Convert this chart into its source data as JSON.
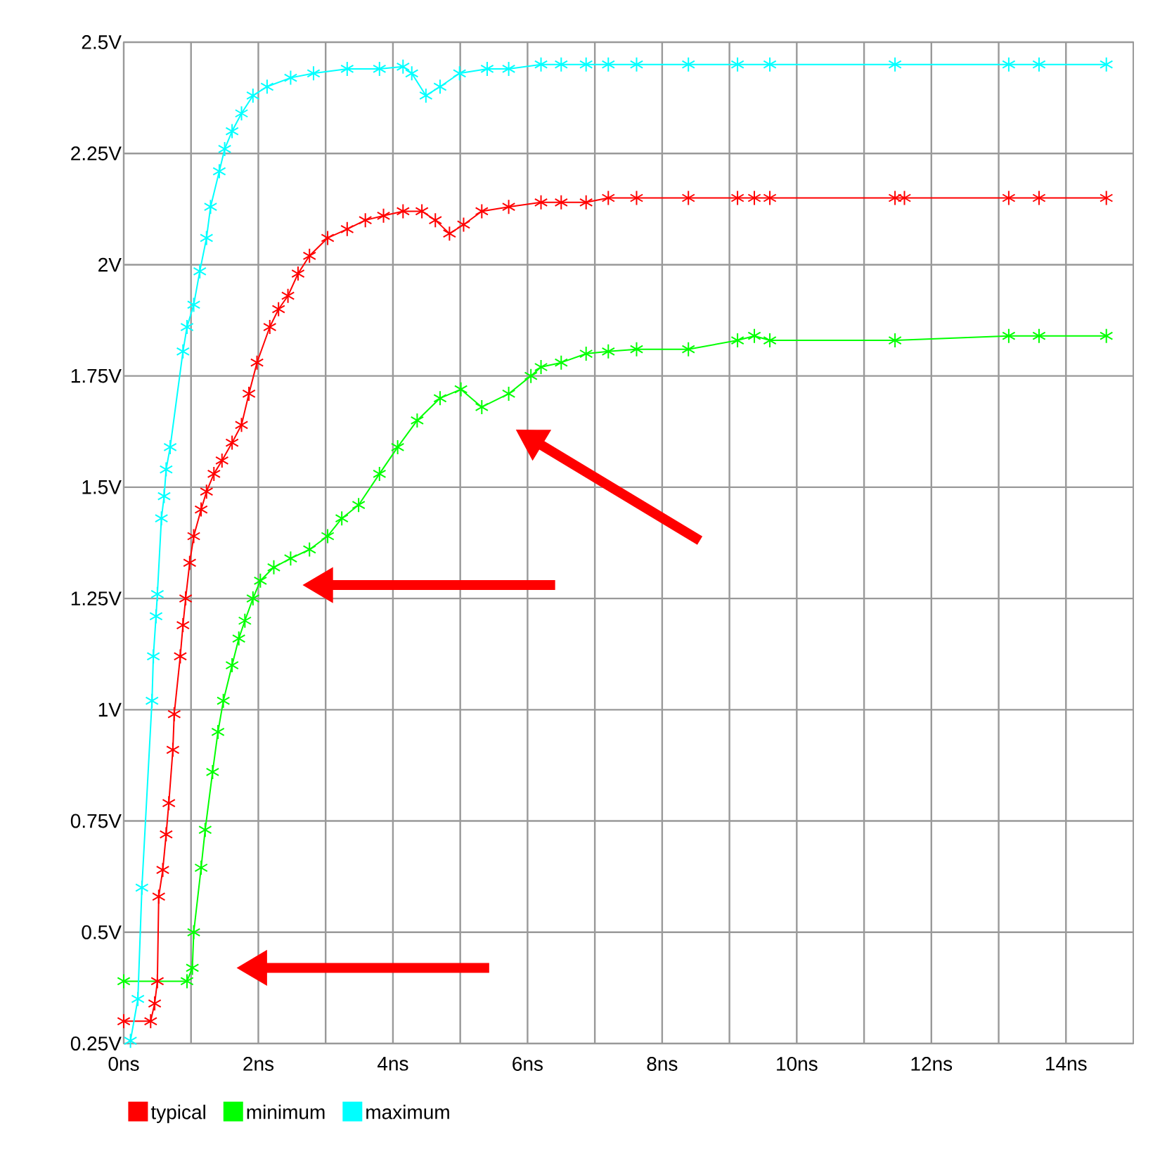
{
  "chart_data": {
    "type": "line",
    "marker": "cross",
    "grid": true,
    "legend": "bottom left",
    "xlim": [
      0,
      15
    ],
    "ylim": [
      0.25,
      2.5
    ],
    "xticks": [
      {
        "value": 0,
        "label": "0ns"
      },
      {
        "value": 1,
        "label": null
      },
      {
        "value": 2,
        "label": "2ns"
      },
      {
        "value": 3,
        "label": null
      },
      {
        "value": 4,
        "label": "4ns"
      },
      {
        "value": 5,
        "label": null
      },
      {
        "value": 6,
        "label": "6ns"
      },
      {
        "value": 7,
        "label": null
      },
      {
        "value": 8,
        "label": "8ns"
      },
      {
        "value": 9,
        "label": null
      },
      {
        "value": 10,
        "label": "10ns"
      },
      {
        "value": 11,
        "label": null
      },
      {
        "value": 12,
        "label": "12ns"
      },
      {
        "value": 13,
        "label": null
      },
      {
        "value": 14,
        "label": "14ns"
      }
    ],
    "yticks": [
      {
        "value": 0.25,
        "label": "0.25V"
      },
      {
        "value": 0.5,
        "label": "0.5V"
      },
      {
        "value": 0.75,
        "label": "0.75V"
      },
      {
        "value": 1,
        "label": "1V"
      },
      {
        "value": 1.25,
        "label": "1.25V"
      },
      {
        "value": 1.5,
        "label": "1.5V"
      },
      {
        "value": 1.75,
        "label": "1.75V"
      },
      {
        "value": 2,
        "label": "2V"
      },
      {
        "value": 2.25,
        "label": "2.25V"
      },
      {
        "value": 2.5,
        "label": "2.5V"
      }
    ],
    "series": [
      {
        "name": "typical",
        "color": "#ff0000",
        "x": [
          0,
          0.4,
          0.46,
          0.5,
          0.52,
          0.58,
          0.63,
          0.67,
          0.73,
          0.75,
          0.84,
          0.88,
          0.92,
          0.98,
          1.04,
          1.15,
          1.23,
          1.34,
          1.46,
          1.61,
          1.75,
          1.86,
          1.98,
          2.17,
          2.3,
          2.44,
          2.59,
          2.76,
          3.03,
          3.32,
          3.59,
          3.86,
          4.15,
          4.43,
          4.63,
          4.84,
          5.05,
          5.32,
          5.72,
          6.2,
          6.5,
          6.87,
          7.2,
          7.62,
          8.39,
          9.12,
          9.37,
          9.6,
          11.46,
          11.6,
          13.15,
          13.6,
          14.6
        ],
        "values": [
          0.3,
          0.3,
          0.34,
          0.39,
          0.58,
          0.64,
          0.72,
          0.79,
          0.91,
          0.99,
          1.12,
          1.19,
          1.25,
          1.33,
          1.39,
          1.45,
          1.49,
          1.53,
          1.56,
          1.6,
          1.64,
          1.71,
          1.78,
          1.86,
          1.9,
          1.93,
          1.98,
          2.02,
          2.06,
          2.08,
          2.1,
          2.11,
          2.12,
          2.12,
          2.1,
          2.07,
          2.09,
          2.12,
          2.13,
          2.14,
          2.14,
          2.14,
          2.15,
          2.15,
          2.15,
          2.15,
          2.15,
          2.15,
          2.15,
          2.15,
          2.15,
          2.15,
          2.15
        ]
      },
      {
        "name": "minimum",
        "color": "#00ff00",
        "x": [
          0,
          0.94,
          1.02,
          1.04,
          1.15,
          1.21,
          1.32,
          1.4,
          1.48,
          1.61,
          1.71,
          1.8,
          1.92,
          2.03,
          2.23,
          2.48,
          2.76,
          3.03,
          3.24,
          3.49,
          3.8,
          4.07,
          4.36,
          4.7,
          5.01,
          5.32,
          5.72,
          6.05,
          6.2,
          6.5,
          6.87,
          7.2,
          7.62,
          8.39,
          9.12,
          9.37,
          9.6,
          11.46,
          13.15,
          13.6,
          14.6
        ],
        "values": [
          0.39,
          0.39,
          0.42,
          0.5,
          0.645,
          0.73,
          0.86,
          0.95,
          1.02,
          1.1,
          1.16,
          1.2,
          1.25,
          1.29,
          1.32,
          1.34,
          1.36,
          1.39,
          1.43,
          1.46,
          1.53,
          1.59,
          1.65,
          1.7,
          1.72,
          1.68,
          1.71,
          1.75,
          1.77,
          1.78,
          1.8,
          1.805,
          1.81,
          1.81,
          1.83,
          1.84,
          1.83,
          1.83,
          1.84,
          1.84,
          1.84
        ]
      },
      {
        "name": "maximum",
        "color": "#00ffff",
        "x": [
          0.1,
          0.21,
          0.27,
          0.42,
          0.44,
          0.48,
          0.5,
          0.56,
          0.6,
          0.63,
          0.69,
          0.88,
          0.94,
          1.04,
          1.13,
          1.23,
          1.29,
          1.42,
          1.5,
          1.61,
          1.75,
          1.92,
          2.13,
          2.48,
          2.82,
          3.32,
          3.8,
          4.15,
          4.28,
          4.49,
          4.7,
          4.99,
          5.4,
          5.72,
          6.2,
          6.5,
          6.87,
          7.2,
          7.62,
          8.39,
          9.12,
          9.6,
          11.46,
          13.15,
          13.6,
          14.6
        ],
        "values": [
          0.256,
          0.35,
          0.6,
          1.02,
          1.12,
          1.21,
          1.26,
          1.43,
          1.48,
          1.54,
          1.59,
          1.805,
          1.86,
          1.91,
          1.985,
          2.06,
          2.13,
          2.21,
          2.26,
          2.3,
          2.34,
          2.38,
          2.4,
          2.42,
          2.43,
          2.44,
          2.44,
          2.445,
          2.43,
          2.38,
          2.4,
          2.43,
          2.44,
          2.44,
          2.45,
          2.45,
          2.45,
          2.45,
          2.45,
          2.45,
          2.45,
          2.45,
          2.45,
          2.45,
          2.45,
          2.45
        ]
      }
    ]
  }
}
